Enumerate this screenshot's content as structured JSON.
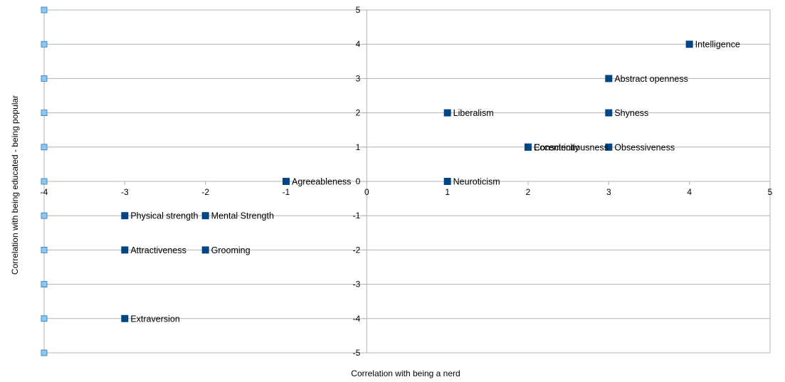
{
  "chart_data": {
    "type": "scatter",
    "title": "",
    "xlabel": "Correlation with being a nerd",
    "ylabel": "Correlation with being educated - being popular",
    "xlim": [
      -4,
      5
    ],
    "ylim": [
      -5,
      5
    ],
    "x_ticks": [
      -4,
      -3,
      -2,
      -1,
      0,
      1,
      2,
      3,
      4,
      5
    ],
    "y_ticks": [
      -5,
      -4,
      -3,
      -2,
      -1,
      0,
      1,
      2,
      3,
      4,
      5
    ],
    "grid": "horizontal",
    "point_color": "#004586",
    "axis_marker_color": "#83caff",
    "points": [
      {
        "label": "Intelligence",
        "x": 4,
        "y": 4
      },
      {
        "label": "Abstract openness",
        "x": 3,
        "y": 3
      },
      {
        "label": "Shyness",
        "x": 3,
        "y": 2
      },
      {
        "label": "Liberalism",
        "x": 1,
        "y": 2
      },
      {
        "label": "Conscientiousness",
        "x": 2,
        "y": 1
      },
      {
        "label": "Eccentricity",
        "x": 2,
        "y": 1
      },
      {
        "label": "Obsessiveness",
        "x": 3,
        "y": 1
      },
      {
        "label": "Agreeableness",
        "x": -1,
        "y": 0
      },
      {
        "label": "Neuroticism",
        "x": 1,
        "y": 0
      },
      {
        "label": "Physical strength",
        "x": -3,
        "y": -1
      },
      {
        "label": "Mental Strength",
        "x": -2,
        "y": -1
      },
      {
        "label": "Attractiveness",
        "x": -3,
        "y": -2
      },
      {
        "label": "Grooming",
        "x": -2,
        "y": -2
      },
      {
        "label": "Extraversion",
        "x": -3,
        "y": -4
      }
    ]
  }
}
